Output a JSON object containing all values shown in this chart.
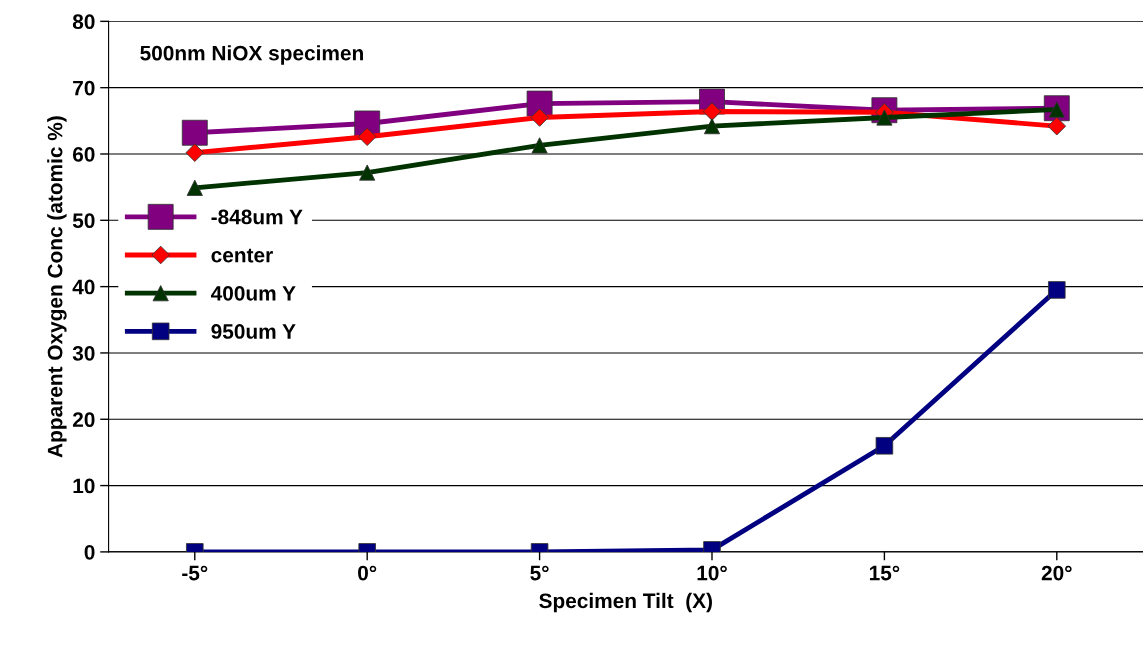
{
  "chart_data": {
    "type": "line",
    "xlabel": "Specimen Tilt  (X)",
    "ylabel": "Apparent Oxygen Conc (atomic %)",
    "annotations": [
      "500nm NiOX specimen"
    ],
    "categories": [
      "-5°",
      "0°",
      "5°",
      "10°",
      "15°",
      "20°"
    ],
    "series": [
      {
        "name": "-848um Y",
        "color": "#800080",
        "marker": "square",
        "values": [
          63.2,
          64.6,
          67.6,
          67.9,
          66.6,
          66.9
        ]
      },
      {
        "name": "center",
        "color": "#ff0000",
        "marker": "diamond",
        "values": [
          60.2,
          62.6,
          65.5,
          66.4,
          66.3,
          64.2
        ]
      },
      {
        "name": "400um Y",
        "color": "#003300",
        "marker": "triangle",
        "values": [
          54.9,
          57.2,
          61.3,
          64.2,
          65.5,
          66.7
        ]
      },
      {
        "name": "950um Y",
        "color": "#000080",
        "marker": "square",
        "values": [
          0,
          0,
          0,
          0.3,
          16.0,
          39.5
        ]
      }
    ],
    "ylim": [
      0,
      80
    ],
    "yticks": [
      0,
      10,
      20,
      30,
      40,
      50,
      60,
      70,
      80
    ],
    "grid": "y",
    "legend": "left",
    "line_style": "solid"
  }
}
